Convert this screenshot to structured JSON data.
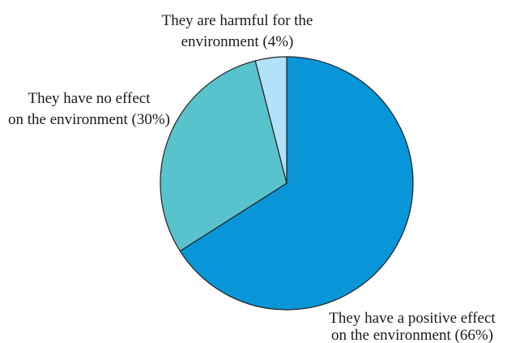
{
  "chart_data": {
    "type": "pie",
    "slices": [
      {
        "key": "positive",
        "value": 66,
        "label": [
          "They have a positive effect",
          "on the environment (66%)"
        ],
        "color": "#0896d8"
      },
      {
        "key": "no_effect",
        "value": 30,
        "label": [
          "They have no effect",
          "on the environment (30%)"
        ],
        "color": "#58c3cd"
      },
      {
        "key": "harmful",
        "value": 4,
        "label": [
          "They are harmful for the",
          "environment (4%)"
        ],
        "color": "#b3e1fa"
      }
    ],
    "start_angle": "12 o'clock",
    "direction": "clockwise",
    "legend": "none"
  }
}
